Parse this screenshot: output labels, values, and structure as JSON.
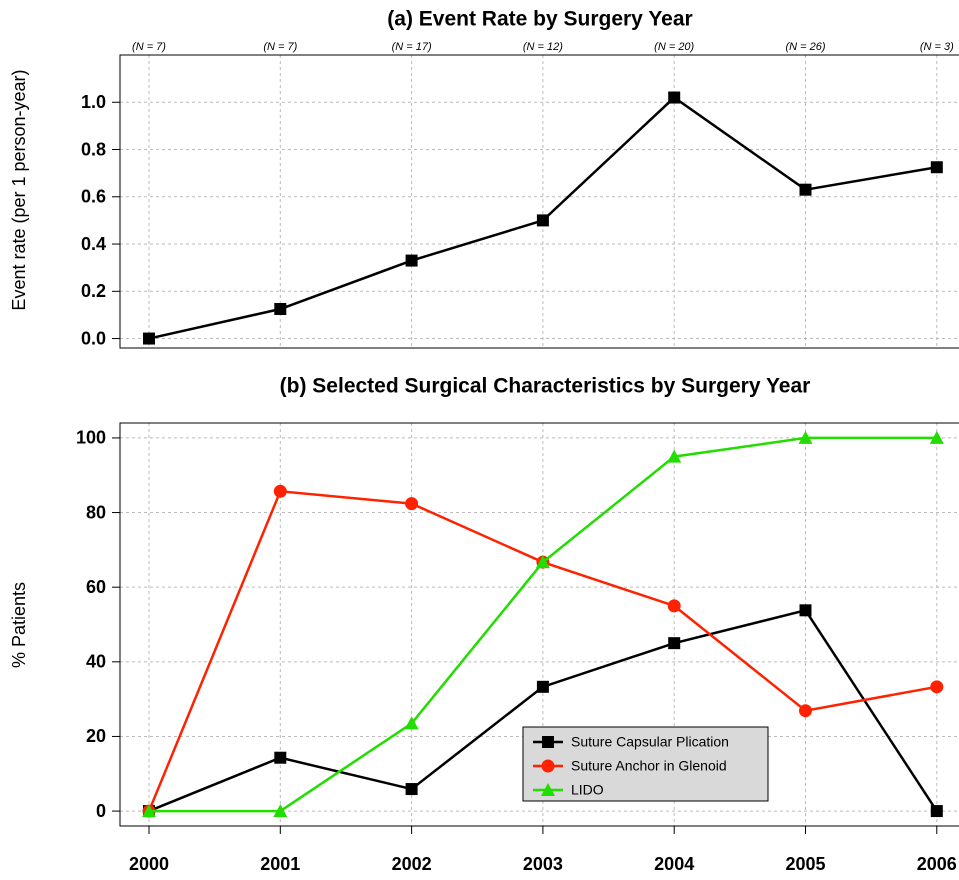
{
  "chart_data": [
    {
      "type": "line",
      "title": "(a) Event Rate by Surgery Year",
      "y_label": "Event rate (per 1 person-year)",
      "categories": [
        "(N = 7)",
        "(N = 7)",
        "(N = 17)",
        "(N = 12)",
        "(N = 20)",
        "(N = 26)",
        "(N = 3)"
      ],
      "series": [
        {
          "color": "#000000",
          "marker": "square",
          "values": [
            0,
            0.125,
            0.33,
            0.5,
            1.02,
            0.63,
            0.725
          ]
        }
      ],
      "ylim": [
        -0.04,
        1.2
      ],
      "yticks": [
        {
          "value": 0,
          "label": "0.0"
        },
        {
          "value": 0.2,
          "label": "0.2"
        },
        {
          "value": 0.4,
          "label": "0.4"
        },
        {
          "value": 0.6,
          "label": "0.6"
        },
        {
          "value": 0.8,
          "label": "0.8"
        },
        {
          "value": 1,
          "label": "1.0"
        }
      ],
      "grid": true
    },
    {
      "type": "line",
      "title": "(b) Selected Surgical Characteristics by Surgery Year",
      "y_label": "% Patients",
      "categories": [
        "2000",
        "2001",
        "2002",
        "2003",
        "2004",
        "2005",
        "2006"
      ],
      "series": [
        {
          "name": "Suture Capsular Plication",
          "color": "#000000",
          "marker": "square",
          "values": [
            0,
            14.3,
            5.9,
            33.3,
            45,
            53.8,
            0
          ]
        },
        {
          "name": "Suture Anchor in Glenoid",
          "color": "#ff2200",
          "marker": "circle",
          "values": [
            0,
            85.7,
            82.4,
            66.7,
            55,
            26.9,
            33.3
          ]
        },
        {
          "name": "LIDO",
          "color": "#22dd00",
          "marker": "triangle",
          "values": [
            0,
            0,
            23.5,
            66.7,
            95,
            100,
            100
          ]
        }
      ],
      "ylim": [
        -4,
        104
      ],
      "yticks": [
        0,
        20,
        40,
        60,
        80,
        100
      ],
      "grid": true,
      "legend": "bottom-center"
    }
  ]
}
